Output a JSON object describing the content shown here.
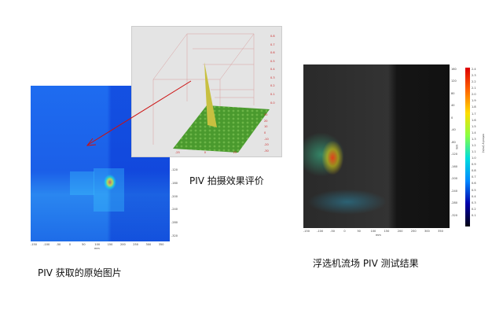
{
  "captions": {
    "raw": "PIV 获取的原始图片",
    "eval": "PIV 拍摄效果评价",
    "result": "浮选机流场 PIV 测试结果"
  },
  "raw_image": {
    "x_ticks": [
      "-150",
      "-100",
      "-50",
      "0",
      "50",
      "100",
      "150",
      "200",
      "250",
      "300",
      "350"
    ],
    "y_ticks": [
      "-80",
      "-120",
      "-160",
      "-200",
      "-240",
      "-280",
      "-320"
    ],
    "x_label": "mm"
  },
  "plot3d": {
    "z_ticks": [
      "0.8",
      "0.7",
      "0.6",
      "0.5",
      "0.4",
      "0.3",
      "0.2",
      "0.1",
      "0.0"
    ],
    "y_ticks": [
      "30",
      "20",
      "10",
      "0",
      "-10",
      "-20",
      "-30"
    ],
    "x_ticks": [
      "-25",
      "0",
      "25"
    ],
    "surface_color": "#4a9a2e",
    "peak_color": "#c8c040",
    "tick_color": "#cc2222"
  },
  "piv_result": {
    "x_ticks": [
      "-150",
      "-100",
      "-50",
      "0",
      "50",
      "100",
      "150",
      "200",
      "250",
      "300",
      "350"
    ],
    "y_ticks": [
      "160",
      "120",
      "80",
      "40",
      "0",
      "-40",
      "-80",
      "-120",
      "-160",
      "-200",
      "-240",
      "-280",
      "-320"
    ],
    "x_label": "mm",
    "y_label": "mm",
    "colorbar_ticks": [
      "2.4",
      "2.3",
      "2.2",
      "2.1",
      "2.0",
      "1.9",
      "1.8",
      "1.7",
      "1.6",
      "1.5",
      "1.4",
      "1.3",
      "1.2",
      "1.1",
      "1.0",
      "0.9",
      "0.8",
      "0.7",
      "0.6",
      "0.5",
      "0.4",
      "0.3",
      "0.2",
      "0.1"
    ],
    "colorbar_label": "velocity (m/s)"
  },
  "arrow_color": "#cc1111"
}
